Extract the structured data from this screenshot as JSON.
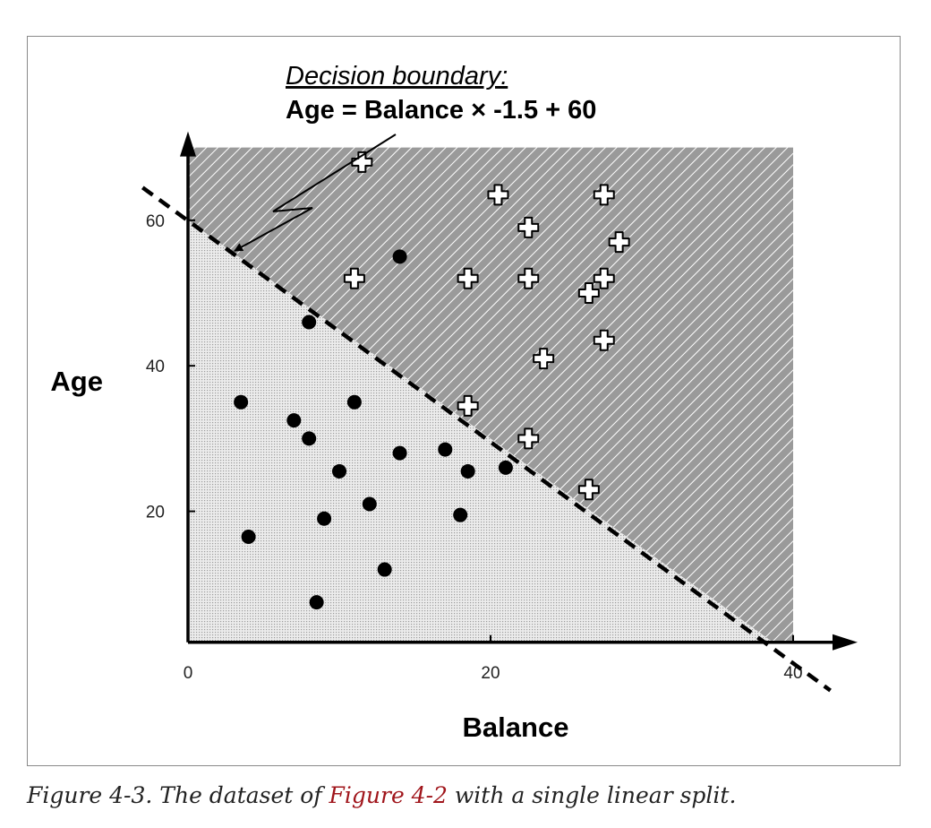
{
  "chart_data": {
    "type": "scatter",
    "xlabel": "Balance",
    "ylabel": "Age",
    "xlim": [
      0,
      40
    ],
    "ylim": [
      2,
      70
    ],
    "x_ticks": [
      {
        "value": 0,
        "label": "0"
      },
      {
        "value": 20,
        "label": "20"
      },
      {
        "value": 40,
        "label": "40"
      }
    ],
    "y_ticks": [
      {
        "value": 20,
        "label": "20"
      },
      {
        "value": 40,
        "label": "40"
      },
      {
        "value": 60,
        "label": "60"
      }
    ],
    "annotation": {
      "heading": "Decision boundary:",
      "equation": "Age = Balance × -1.5 +  60"
    },
    "decision_boundary": {
      "slope": -1.5,
      "intercept": 60,
      "x_range": [
        -3,
        39.8
      ]
    },
    "regions": {
      "above_boundary": {
        "fill": "#9a9a9a",
        "hatch": "#ffffff"
      },
      "below_boundary": {
        "fill": "#e0e0e0",
        "dots": "#999999"
      }
    },
    "series": [
      {
        "marker": "circle",
        "color": "#000000",
        "points": [
          [
            3.5,
            35
          ],
          [
            4,
            16.5
          ],
          [
            7,
            32.5
          ],
          [
            8,
            30
          ],
          [
            8,
            46
          ],
          [
            9,
            19
          ],
          [
            8.5,
            7.5
          ],
          [
            10,
            25.5
          ],
          [
            11,
            35
          ],
          [
            12,
            21
          ],
          [
            13,
            12
          ],
          [
            14,
            28
          ],
          [
            14,
            55
          ],
          [
            17,
            28.5
          ],
          [
            18,
            19.5
          ],
          [
            18.5,
            25.5
          ],
          [
            21,
            26
          ]
        ]
      },
      {
        "marker": "plus",
        "color": "#ffffff",
        "points": [
          [
            11.5,
            68
          ],
          [
            11,
            52
          ],
          [
            18.5,
            52
          ],
          [
            18.5,
            34.5
          ],
          [
            20.5,
            63.5
          ],
          [
            22.5,
            59
          ],
          [
            22.5,
            52
          ],
          [
            22.5,
            30
          ],
          [
            23.5,
            41
          ],
          [
            26.5,
            23
          ],
          [
            26.5,
            50
          ],
          [
            27.5,
            52
          ],
          [
            27.5,
            63.5
          ],
          [
            27.5,
            43.5
          ],
          [
            28.5,
            57
          ]
        ]
      }
    ]
  },
  "caption": {
    "prefix": "Figure 4-3. The dataset of ",
    "link": "Figure 4-2",
    "suffix": " with a single linear split."
  }
}
